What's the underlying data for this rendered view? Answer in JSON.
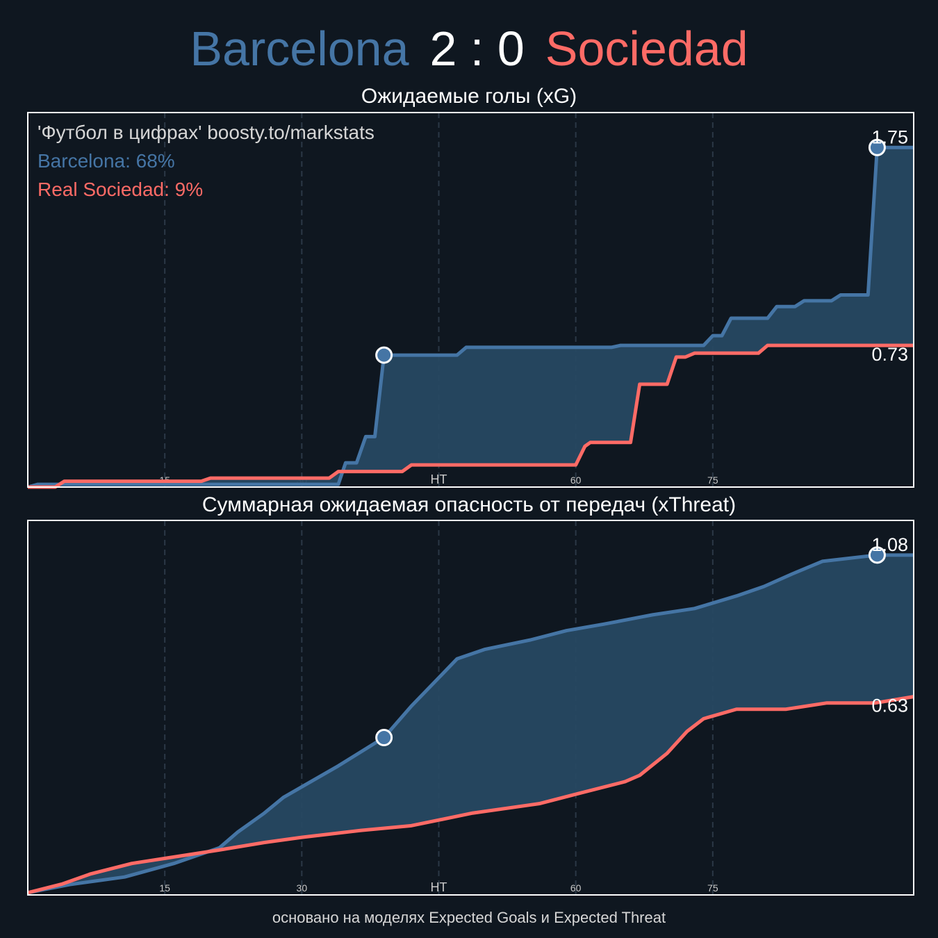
{
  "header": {
    "home": "Barcelona",
    "score": "2 : 0",
    "away": "Sociedad"
  },
  "legend": {
    "source": "'Футбол в цифрах' boosty.to/markstats",
    "home_prob": "Barcelona: 68%",
    "away_prob": "Real Sociedad: 9%"
  },
  "footer": "основано на моделях Expected Goals и Expected Threat",
  "colors": {
    "home": "#4575a5",
    "away": "#ff6b66",
    "fill": "#274862",
    "background": "#0f1720"
  },
  "chart_data": [
    {
      "type": "line",
      "title": "Ожидаемые голы (xG)",
      "xlim": [
        0,
        97
      ],
      "ylim": [
        0,
        1.93
      ],
      "xticks": [
        {
          "v": 15,
          "label": "15"
        },
        {
          "v": 30,
          "label": "30"
        },
        {
          "v": 45,
          "label": "HT"
        },
        {
          "v": 60,
          "label": "60"
        },
        {
          "v": 75,
          "label": "75"
        }
      ],
      "end_labels": {
        "home": "1.75",
        "away": "0.73"
      },
      "goals": [
        {
          "team": "home",
          "minute": 39,
          "value": 0.68
        },
        {
          "team": "home",
          "minute": 93,
          "value": 1.75
        }
      ],
      "series": [
        {
          "name": "Barcelona",
          "points": [
            [
              0,
              0
            ],
            [
              1.1,
              0.014
            ],
            [
              34,
              0.014
            ],
            [
              34.8,
              0.125
            ],
            [
              36,
              0.125
            ],
            [
              37,
              0.26
            ],
            [
              38,
              0.26
            ],
            [
              39,
              0.68
            ],
            [
              47,
              0.68
            ],
            [
              48,
              0.72
            ],
            [
              63.9,
              0.72
            ],
            [
              64.9,
              0.73
            ],
            [
              74,
              0.73
            ],
            [
              75,
              0.78
            ],
            [
              76,
              0.78
            ],
            [
              77,
              0.87
            ],
            [
              81,
              0.87
            ],
            [
              82,
              0.93
            ],
            [
              84,
              0.93
            ],
            [
              85,
              0.96
            ],
            [
              88,
              0.96
            ],
            [
              89,
              0.99
            ],
            [
              92,
              0.99
            ],
            [
              93,
              1.75
            ],
            [
              97,
              1.75
            ]
          ]
        },
        {
          "name": "Real Sociedad",
          "points": [
            [
              0,
              0
            ],
            [
              3,
              0
            ],
            [
              4,
              0.03
            ],
            [
              19,
              0.03
            ],
            [
              20,
              0.046
            ],
            [
              33,
              0.046
            ],
            [
              34,
              0.08
            ],
            [
              41,
              0.08
            ],
            [
              42,
              0.114
            ],
            [
              60,
              0.114
            ],
            [
              61,
              0.21
            ],
            [
              61.6,
              0.23
            ],
            [
              66,
              0.23
            ],
            [
              67,
              0.53
            ],
            [
              70,
              0.53
            ],
            [
              71,
              0.67
            ],
            [
              72,
              0.67
            ],
            [
              73,
              0.69
            ],
            [
              80,
              0.69
            ],
            [
              81,
              0.73
            ],
            [
              97,
              0.73
            ]
          ]
        }
      ]
    },
    {
      "type": "line",
      "title": "Суммарная ожидаемая опасность от передач (xThreat)",
      "xlim": [
        0,
        97
      ],
      "ylim": [
        0,
        1.19
      ],
      "xticks": [
        {
          "v": 15,
          "label": "15"
        },
        {
          "v": 30,
          "label": "30"
        },
        {
          "v": 45,
          "label": "HT"
        },
        {
          "v": 60,
          "label": "60"
        },
        {
          "v": 75,
          "label": "75"
        }
      ],
      "end_labels": {
        "home": "1.08",
        "away": "0.63"
      },
      "goals": [
        {
          "team": "home",
          "minute": 39,
          "value": 0.5
        },
        {
          "team": "home",
          "minute": 93,
          "value": 1.08
        }
      ],
      "series": [
        {
          "name": "Barcelona",
          "points": [
            [
              0,
              0.007
            ],
            [
              4.6,
              0.033
            ],
            [
              10.6,
              0.057
            ],
            [
              16,
              0.1
            ],
            [
              21,
              0.15
            ],
            [
              23,
              0.2
            ],
            [
              25.9,
              0.26
            ],
            [
              28,
              0.31
            ],
            [
              30.4,
              0.35
            ],
            [
              34,
              0.41
            ],
            [
              39,
              0.5
            ],
            [
              42,
              0.6
            ],
            [
              47,
              0.75
            ],
            [
              50,
              0.78
            ],
            [
              55,
              0.81
            ],
            [
              59,
              0.84
            ],
            [
              63,
              0.86
            ],
            [
              68.4,
              0.89
            ],
            [
              73,
              0.91
            ],
            [
              77.6,
              0.95
            ],
            [
              80.6,
              0.98
            ],
            [
              83.7,
              1.02
            ],
            [
              87,
              1.06
            ],
            [
              93,
              1.08
            ],
            [
              97,
              1.08
            ]
          ]
        },
        {
          "name": "Real Sociedad",
          "points": [
            [
              0,
              0.007
            ],
            [
              3.8,
              0.035
            ],
            [
              6.8,
              0.066
            ],
            [
              11.4,
              0.1
            ],
            [
              15.2,
              0.117
            ],
            [
              21,
              0.143
            ],
            [
              26,
              0.167
            ],
            [
              30,
              0.183
            ],
            [
              36.5,
              0.205
            ],
            [
              42,
              0.22
            ],
            [
              48.7,
              0.26
            ],
            [
              56,
              0.29
            ],
            [
              60,
              0.32
            ],
            [
              65.4,
              0.36
            ],
            [
              67,
              0.38
            ],
            [
              70,
              0.45
            ],
            [
              72.2,
              0.52
            ],
            [
              74,
              0.56
            ],
            [
              77.6,
              0.59
            ],
            [
              83,
              0.59
            ],
            [
              87.5,
              0.61
            ],
            [
              92.8,
              0.61
            ],
            [
              97,
              0.63
            ]
          ]
        }
      ]
    }
  ]
}
